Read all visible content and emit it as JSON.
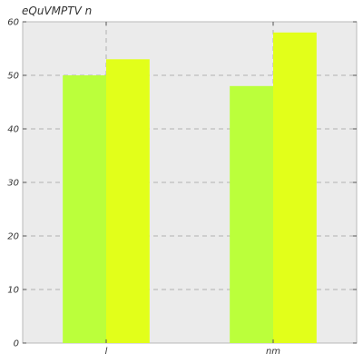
{
  "chart_data": {
    "type": "bar",
    "title": "eQuVMPTV n",
    "xlabel": "",
    "ylabel": "",
    "categories": [
      "l",
      "nm"
    ],
    "series": [
      {
        "values": [
          50,
          48
        ],
        "color": "#bbff3b"
      },
      {
        "values": [
          53,
          58
        ],
        "color": "#e2ff1a"
      }
    ],
    "ylim": [
      0,
      60
    ],
    "yticks": [
      0,
      10,
      20,
      30,
      40,
      50,
      60
    ],
    "grid": true,
    "legend": "none",
    "background_color": "#ebebeb"
  }
}
